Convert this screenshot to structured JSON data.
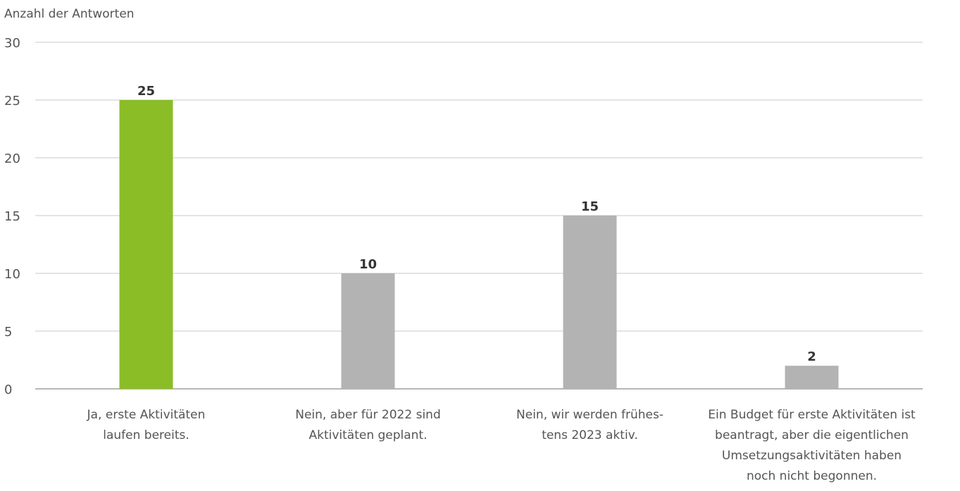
{
  "chart_data": {
    "type": "bar",
    "ylabel": "Anzahl der Antworten",
    "xlabel": "",
    "ylim": [
      0,
      30
    ],
    "yticks": [
      0,
      5,
      10,
      15,
      20,
      25,
      30
    ],
    "grid": true,
    "categories": [
      [
        "Ja, erste Aktivitäten",
        "laufen bereits."
      ],
      [
        "Nein, aber für 2022 sind",
        "Aktivitäten geplant."
      ],
      [
        "Nein, wir werden frühes-",
        "tens 2023 aktiv."
      ],
      [
        "Ein Budget für erste Aktivitäten ist",
        "beantragt, aber die eigentlichen",
        "Umsetzungsaktivitäten haben",
        "noch nicht begonnen."
      ]
    ],
    "values": [
      25,
      10,
      15,
      2
    ],
    "bar_colors": [
      "#8bbd27",
      "#b3b3b3",
      "#b3b3b3",
      "#b3b3b3"
    ]
  }
}
